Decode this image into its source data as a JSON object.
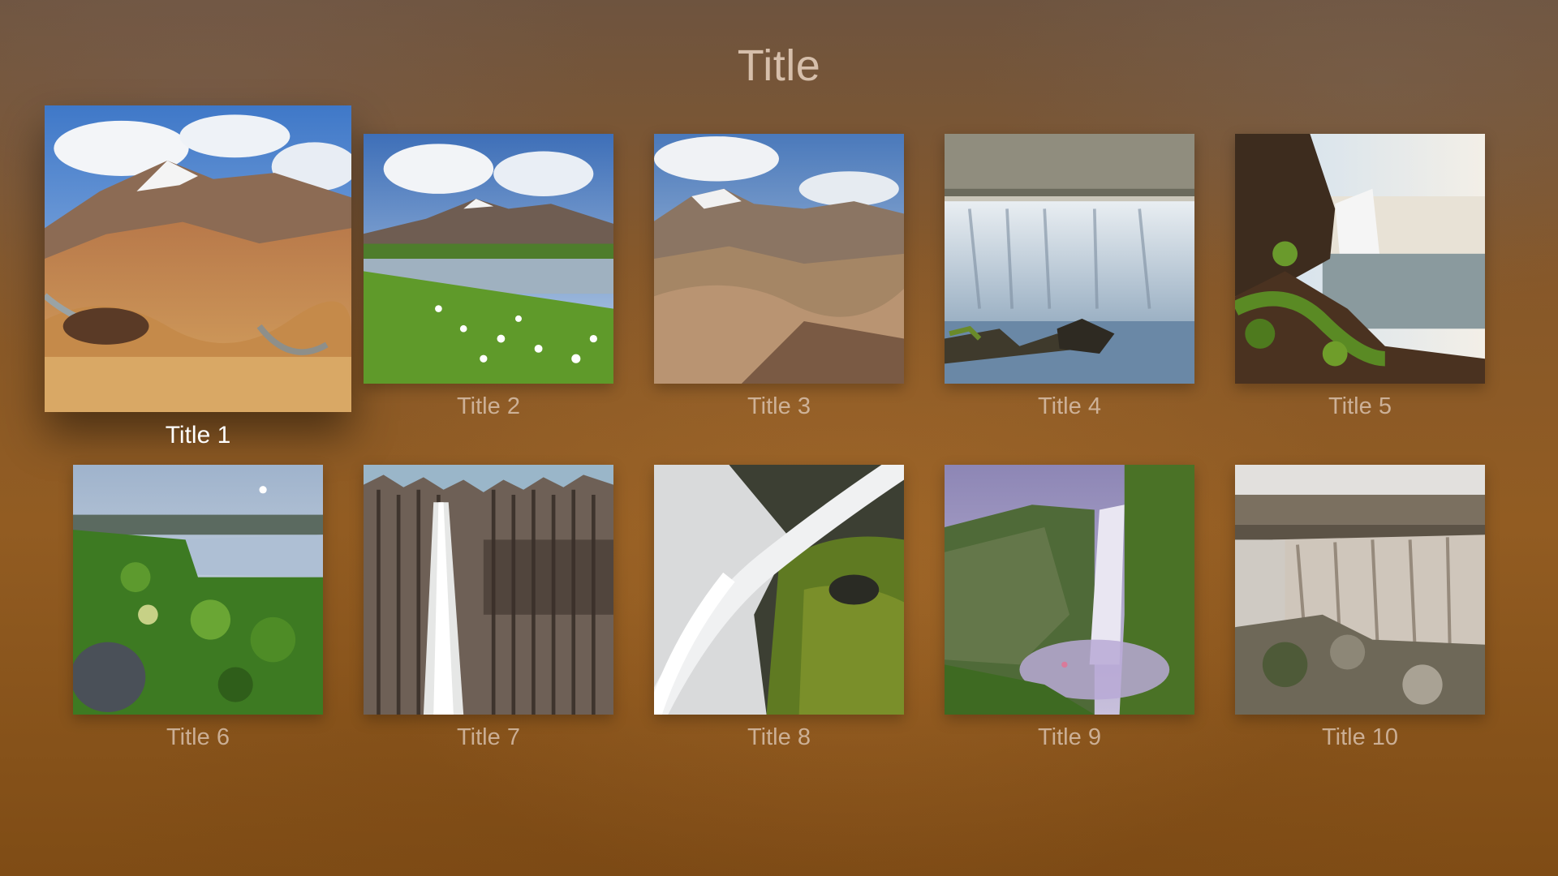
{
  "page": {
    "title": "Title"
  },
  "gallery": {
    "items": [
      {
        "title": "Title 1",
        "image": "rainbow-mountains-photo",
        "focused": true
      },
      {
        "title": "Title 2",
        "image": "lake-cotton-grass-photo",
        "focused": false
      },
      {
        "title": "Title 3",
        "image": "mountain-valley-photo",
        "focused": false
      },
      {
        "title": "Title 4",
        "image": "misty-waterfall-photo",
        "focused": false
      },
      {
        "title": "Title 5",
        "image": "cliff-waterfall-photo",
        "focused": false
      },
      {
        "title": "Title 6",
        "image": "lakeside-vegetation-photo",
        "focused": false
      },
      {
        "title": "Title 7",
        "image": "basalt-column-waterfall-photo",
        "focused": false
      },
      {
        "title": "Title 8",
        "image": "mossy-cascade-photo",
        "focused": false
      },
      {
        "title": "Title 9",
        "image": "purple-mist-waterfall-photo",
        "focused": false
      },
      {
        "title": "Title 10",
        "image": "wide-canyon-waterfall-photo",
        "focused": false
      }
    ]
  },
  "colors": {
    "background": "#8a5a26",
    "title_text": "#ecd7c4",
    "caption_text": "#e1cdbe",
    "focused_caption_text": "#ffffff"
  }
}
